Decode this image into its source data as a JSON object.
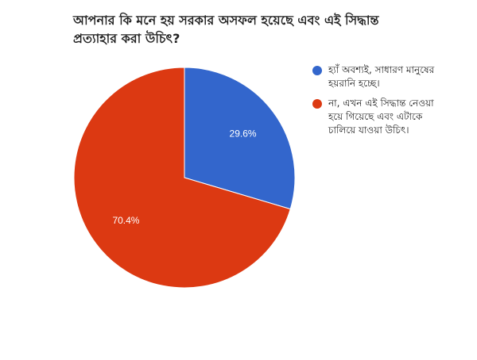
{
  "title": "আপনার কি মনে হয় সরকার অসফল হয়েছে এবং এই সিদ্ধান্ত প্রত্যাহার করা উচিৎ?",
  "chart_data": {
    "type": "pie",
    "title": "আপনার কি মনে হয় সরকার অসফল হয়েছে এবং এই সিদ্ধান্ত প্রত্যাহার করা উচিৎ?",
    "legend_position": "right",
    "slices": [
      {
        "label": "হ্যাঁ অবশ্যই, সাধারণ মানুষের হয়রানি হচ্ছে।",
        "value": 29.6,
        "value_label": "29.6%",
        "color": "#3366cc"
      },
      {
        "label": "না, এখন এই সিদ্ধান্ত নেওয়া হয়ে গিয়েছে এবং এটাকে চালিয়ে যাওয়া উচিৎ।",
        "value": 70.4,
        "value_label": "70.4%",
        "color": "#dc3912"
      }
    ]
  }
}
